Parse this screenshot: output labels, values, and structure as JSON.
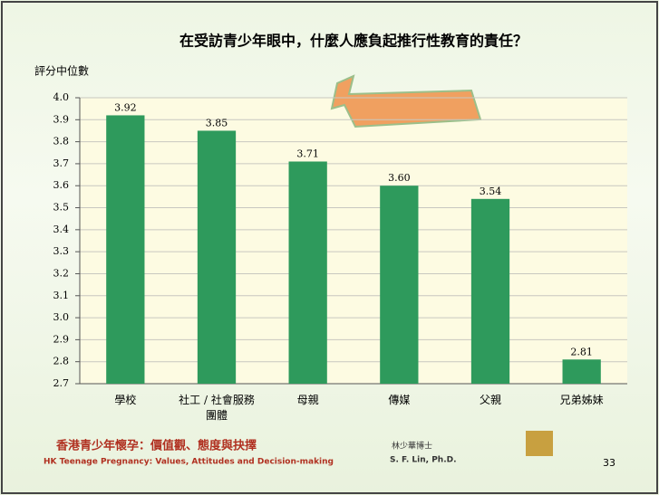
{
  "chart_data": {
    "type": "bar",
    "title": "在受訪青少年眼中，什麼人應負起推行性教育的責任？",
    "y_label": "評分中位數",
    "categories": [
      "學校",
      "社工 / 社會服務\n團體",
      "母親",
      "傳媒",
      "父親",
      "兄弟姊妹"
    ],
    "values": [
      3.92,
      3.85,
      3.71,
      3.6,
      3.54,
      2.81
    ],
    "value_labels": [
      "3.92",
      "3.85",
      "3.71",
      "3.60",
      "3.54",
      "2.81"
    ],
    "color": "#2e9a5c",
    "ylim": [
      2.7,
      4.0
    ],
    "yticks": [
      2.7,
      2.8,
      2.9,
      {
        "value": 3.0,
        "label": "3.0"
      },
      3.1,
      3.2,
      3.3,
      3.4,
      3.5,
      3.6,
      3.7,
      3.8,
      3.9,
      {
        "value": 4.0,
        "label": "4.0"
      }
    ],
    "grid": true
  },
  "footer": {
    "title_zh": "香港青少年懷孕：價值觀、態度與抉擇",
    "title_en": "HK Teenage Pregnancy: Values, Attitudes and Decision-making",
    "author_zh": "林少華博士",
    "author_en": "S. F. Lin, Ph.D.",
    "page": "33"
  }
}
